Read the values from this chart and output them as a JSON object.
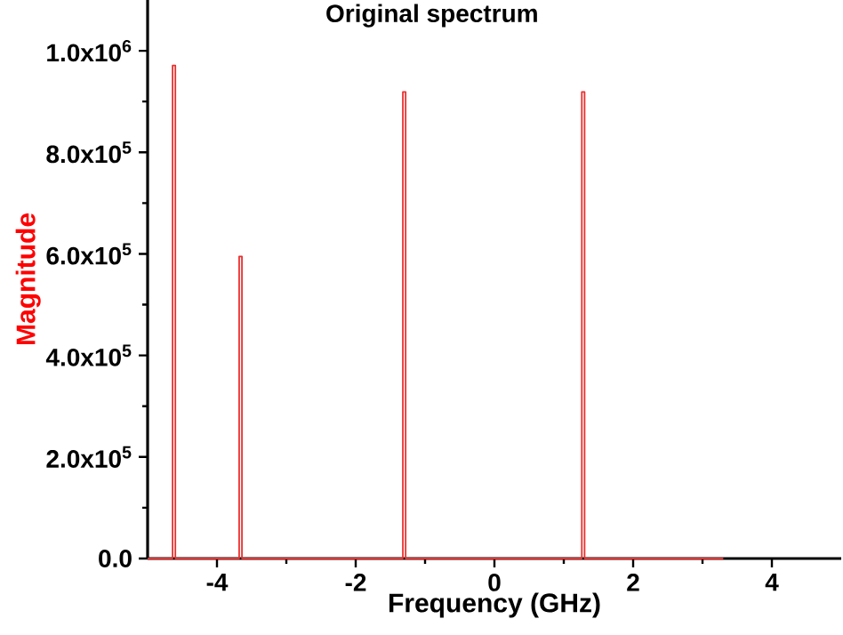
{
  "chart_data": {
    "type": "line",
    "title": "Original spectrum",
    "xlabel": "Frequency (GHz)",
    "ylabel": "Magnitude",
    "xlim": [
      -5,
      5
    ],
    "xticks": [
      -4,
      -2,
      0,
      2,
      4
    ],
    "ylim": [
      0,
      1100000
    ],
    "yticks": [
      {
        "value": 0,
        "label": "0.0"
      },
      {
        "value": 200000,
        "label": "2.0x10$^{5}$"
      },
      {
        "value": 400000,
        "label": "4.0x10$^{5}$"
      },
      {
        "value": 600000,
        "label": "6.0x10$^{5}$"
      },
      {
        "value": 800000,
        "label": "8.0x10$^{5}$"
      },
      {
        "value": 1000000,
        "label": "1.0x10$^{6}$"
      }
    ],
    "marker": "none",
    "line_style": "solid",
    "series": [
      {
        "color": "#e8312f",
        "x": [
          -5,
          -4.64,
          -4.64,
          -4.6,
          -4.6,
          -3.68,
          -3.68,
          -3.64,
          -3.64,
          -1.32,
          -1.32,
          -1.28,
          -1.28,
          1.26,
          1.26,
          1.3,
          1.3,
          3.3
        ],
        "values": [
          0,
          0,
          971000,
          971000,
          0,
          0,
          595000,
          595000,
          0,
          0,
          919000,
          919000,
          0,
          0,
          919000,
          919000,
          0,
          0
        ]
      }
    ]
  }
}
